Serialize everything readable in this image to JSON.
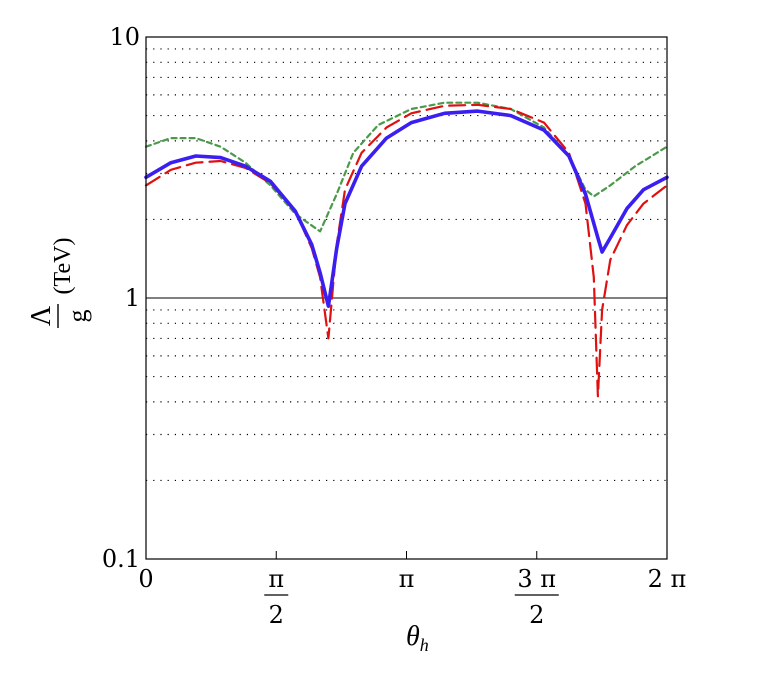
{
  "chart_data": {
    "type": "line",
    "xlabel": "θh",
    "ylabel": {
      "numerator": "Λ",
      "denominator": "g",
      "unit": "(TeV)"
    },
    "yscale": "log",
    "ylim": [
      0.1,
      10
    ],
    "xlim": [
      0,
      6.2832
    ],
    "y_ticks": [
      {
        "value": 0.1,
        "label": "0.1"
      },
      {
        "value": 1,
        "label": "1"
      },
      {
        "value": 10,
        "label": "10"
      }
    ],
    "x_ticks": [
      {
        "value": 0,
        "kind": "plain",
        "text": "0"
      },
      {
        "value": 1.5708,
        "kind": "frac",
        "num": "π",
        "den": "2"
      },
      {
        "value": 3.1416,
        "kind": "plain",
        "text": "π"
      },
      {
        "value": 4.7124,
        "kind": "frac",
        "num": "3 π",
        "den": "2"
      },
      {
        "value": 6.2832,
        "kind": "plain",
        "text": "2 π"
      }
    ],
    "grid": "dotted horizontal lines at minor decades",
    "reference_line": 1,
    "series": [
      {
        "style": "solid",
        "color": "#3a1ff0",
        "points": [
          [
            0,
            2.9
          ],
          [
            0.3,
            3.3
          ],
          [
            0.6,
            3.5
          ],
          [
            0.9,
            3.45
          ],
          [
            1.2,
            3.2
          ],
          [
            1.5,
            2.8
          ],
          [
            1.8,
            2.15
          ],
          [
            2.0,
            1.6
          ],
          [
            2.1,
            1.25
          ],
          [
            2.2,
            0.93
          ],
          [
            2.3,
            1.55
          ],
          [
            2.4,
            2.3
          ],
          [
            2.6,
            3.2
          ],
          [
            2.9,
            4.1
          ],
          [
            3.2,
            4.7
          ],
          [
            3.6,
            5.1
          ],
          [
            4.0,
            5.2
          ],
          [
            4.4,
            5.0
          ],
          [
            4.8,
            4.4
          ],
          [
            5.1,
            3.5
          ],
          [
            5.3,
            2.5
          ],
          [
            5.45,
            1.7
          ],
          [
            5.5,
            1.5
          ],
          [
            5.6,
            1.7
          ],
          [
            5.8,
            2.2
          ],
          [
            6.0,
            2.6
          ],
          [
            6.2832,
            2.9
          ]
        ]
      },
      {
        "style": "long-dashed",
        "color": "#e01010",
        "points": [
          [
            0,
            2.7
          ],
          [
            0.3,
            3.1
          ],
          [
            0.6,
            3.3
          ],
          [
            0.9,
            3.35
          ],
          [
            1.2,
            3.15
          ],
          [
            1.5,
            2.75
          ],
          [
            1.8,
            2.15
          ],
          [
            2.0,
            1.55
          ],
          [
            2.1,
            1.2
          ],
          [
            2.2,
            0.7
          ],
          [
            2.3,
            1.6
          ],
          [
            2.4,
            2.6
          ],
          [
            2.6,
            3.6
          ],
          [
            2.9,
            4.5
          ],
          [
            3.2,
            5.1
          ],
          [
            3.6,
            5.45
          ],
          [
            4.0,
            5.5
          ],
          [
            4.4,
            5.3
          ],
          [
            4.8,
            4.7
          ],
          [
            5.1,
            3.6
          ],
          [
            5.3,
            2.3
          ],
          [
            5.4,
            1.2
          ],
          [
            5.45,
            0.42
          ],
          [
            5.5,
            0.9
          ],
          [
            5.6,
            1.4
          ],
          [
            5.8,
            1.9
          ],
          [
            6.0,
            2.3
          ],
          [
            6.2832,
            2.7
          ]
        ]
      },
      {
        "style": "short-dashed",
        "color": "#4a9a4a",
        "points": [
          [
            0,
            3.8
          ],
          [
            0.3,
            4.1
          ],
          [
            0.6,
            4.1
          ],
          [
            0.9,
            3.8
          ],
          [
            1.2,
            3.3
          ],
          [
            1.5,
            2.7
          ],
          [
            1.8,
            2.1
          ],
          [
            2.1,
            1.8
          ],
          [
            2.3,
            2.5
          ],
          [
            2.5,
            3.6
          ],
          [
            2.8,
            4.6
          ],
          [
            3.2,
            5.3
          ],
          [
            3.6,
            5.6
          ],
          [
            4.0,
            5.6
          ],
          [
            4.4,
            5.3
          ],
          [
            4.8,
            4.5
          ],
          [
            5.1,
            3.5
          ],
          [
            5.3,
            2.6
          ],
          [
            5.4,
            2.45
          ],
          [
            5.6,
            2.7
          ],
          [
            5.9,
            3.2
          ],
          [
            6.2832,
            3.8
          ]
        ]
      }
    ]
  }
}
